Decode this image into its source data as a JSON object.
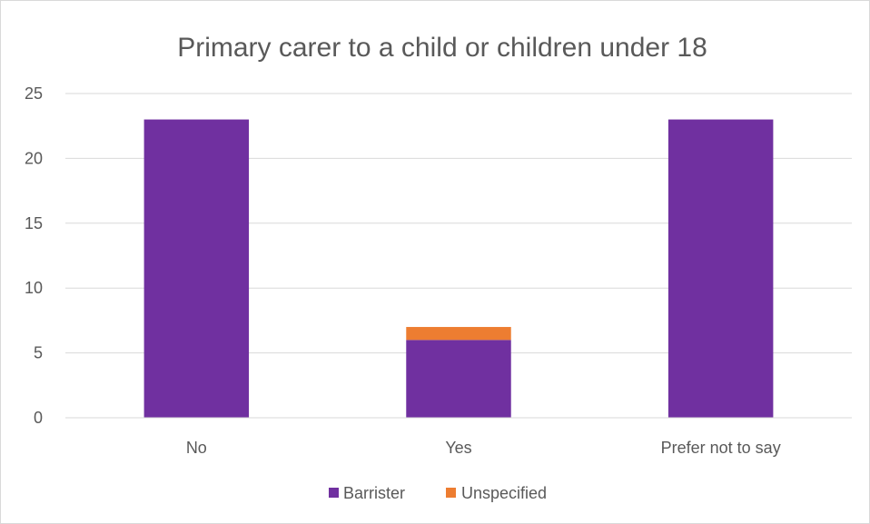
{
  "chart_data": {
    "type": "bar",
    "stacked": true,
    "title": "Primary carer to a child or children under 18",
    "categories": [
      "No",
      "Yes",
      "Prefer not to say"
    ],
    "series": [
      {
        "name": "Barrister",
        "values": [
          23,
          6,
          23
        ],
        "color": "#7030a0"
      },
      {
        "name": "Unspecified",
        "values": [
          0,
          1,
          0
        ],
        "color": "#ed7d31"
      }
    ],
    "yticks": [
      "0",
      "5",
      "10",
      "15",
      "20",
      "25"
    ],
    "ylim": [
      0,
      25
    ],
    "grid": true,
    "legend": "bottom"
  }
}
